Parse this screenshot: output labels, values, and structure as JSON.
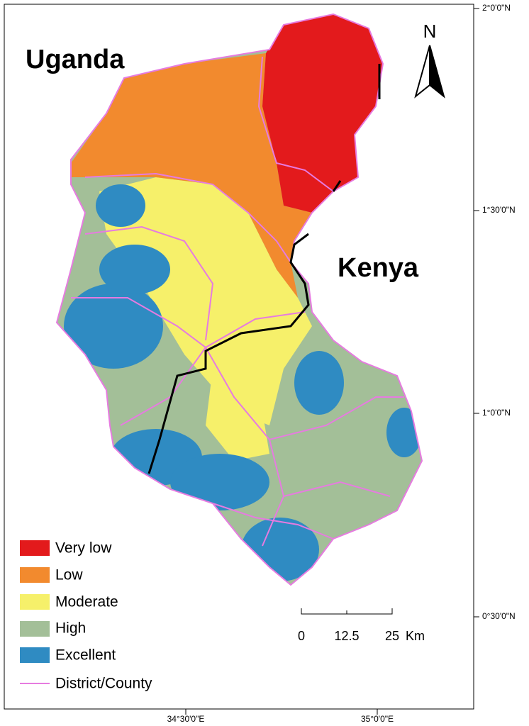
{
  "map": {
    "labels": {
      "uganda": "Uganda",
      "kenya": "Kenya"
    },
    "north": "N",
    "latitude_labels": [
      "2°0'0\"N",
      "1°30'0\"N",
      "1°0'0\"N",
      "0°30'0\"N"
    ],
    "longitude_labels": [
      "34°30'0\"E",
      "35°0'0\"E"
    ],
    "scale_bar": {
      "labels": [
        "0",
        "12.5",
        "25",
        "Km"
      ]
    },
    "legend": [
      "Very low",
      "Low",
      "Moderate",
      "High",
      "Excellent",
      "District/County"
    ]
  }
}
